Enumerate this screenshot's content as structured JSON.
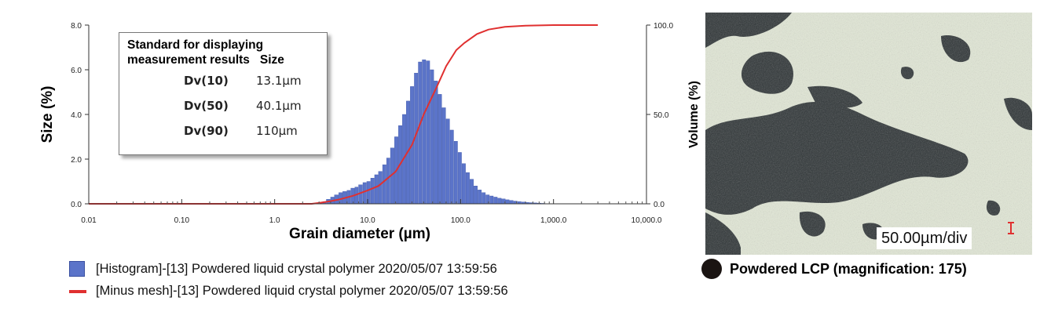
{
  "chart_data": {
    "type": "bar",
    "xscale": "log",
    "xlim": [
      0.01,
      10000
    ],
    "ylim": [
      0,
      8
    ],
    "y2lim": [
      0,
      100
    ],
    "xlabel": "Grain diameter (µm)",
    "ylabel": "Size (%)",
    "y2label": "Volume (%)",
    "x_ticks": [
      "0.01",
      "0.10",
      "1.0",
      "10.0",
      "100.0",
      "1,000.0",
      "10,000.0"
    ],
    "y_ticks": [
      "0.0",
      "2.0",
      "4.0",
      "6.0",
      "8.0"
    ],
    "y2_ticks": [
      "0.0",
      "50.0",
      "100.0"
    ],
    "grid": false,
    "histogram": {
      "name": "[Histogram]-[13] Powdered liquid crystal polymer 2020/05/07 13:59:56",
      "color": "#5b74c9",
      "x": [
        3.0,
        3.3,
        3.6,
        4.0,
        4.4,
        4.9,
        5.4,
        6.0,
        6.6,
        7.3,
        8.0,
        8.9,
        9.8,
        10.8,
        11.9,
        13.1,
        14.5,
        16.0,
        17.6,
        19.5,
        21.5,
        23.7,
        26.1,
        28.8,
        31.8,
        35.1,
        38.7,
        42.7,
        47.1,
        52.0,
        57.4,
        63.3,
        69.9,
        77.1,
        85.1,
        93.9,
        103.6,
        114.3,
        126.1,
        139.2,
        153.6,
        169.5,
        187.0,
        206.4,
        227.7,
        251.3,
        277.3,
        306.0,
        337.6,
        372.6,
        411.1,
        453.6,
        500.5,
        552.3,
        609.4,
        672.5,
        742.0
      ],
      "values": [
        0.05,
        0.1,
        0.2,
        0.3,
        0.4,
        0.5,
        0.55,
        0.6,
        0.7,
        0.75,
        0.85,
        0.95,
        1.0,
        1.15,
        1.3,
        1.45,
        1.75,
        2.05,
        2.5,
        3.0,
        3.5,
        4.0,
        4.6,
        5.25,
        5.85,
        6.35,
        6.45,
        6.4,
        6.0,
        5.5,
        4.9,
        4.3,
        3.8,
        3.3,
        2.8,
        2.3,
        1.8,
        1.4,
        1.1,
        0.8,
        0.62,
        0.5,
        0.4,
        0.35,
        0.3,
        0.25,
        0.22,
        0.18,
        0.15,
        0.12,
        0.1,
        0.08,
        0.06,
        0.05,
        0.04,
        0.03,
        0.02
      ]
    },
    "cumulative": {
      "name": "[Minus mesh]-[13] Powdered liquid crystal polymer 2020/05/07 13:59:56",
      "color": "#e03030",
      "axis": "y2",
      "x": [
        0.01,
        2.5,
        3.0,
        4.0,
        5.0,
        7.0,
        10.0,
        13.1,
        20.0,
        30.0,
        40.1,
        55.0,
        70.0,
        90.0,
        110.0,
        150.0,
        200.0,
        300.0,
        500.0,
        1000.0,
        3000.0
      ],
      "y": [
        0,
        0,
        0.5,
        1.5,
        2.5,
        4.5,
        7.5,
        10,
        18,
        33,
        50,
        65,
        77,
        86,
        90,
        95,
        97.5,
        99,
        99.7,
        100,
        100
      ]
    }
  },
  "infobox": {
    "title_line1": "Standard for displaying",
    "title_line2": "measurement results   Size",
    "rows": [
      {
        "label": "Dv(10)",
        "value": "13.1µm"
      },
      {
        "label": "Dv(50)",
        "value": "40.1µm"
      },
      {
        "label": "Dv(90)",
        "value": "110µm"
      }
    ]
  },
  "legend": {
    "histogram": "[Histogram]-[13] Powdered liquid crystal polymer 2020/05/07 13:59:56",
    "line": "[Minus mesh]-[13] Powdered liquid crystal polymer 2020/05/07 13:59:56"
  },
  "photo": {
    "scale_label": "50.00µm/div",
    "caption": "Powdered LCP (magnification: 175)"
  }
}
